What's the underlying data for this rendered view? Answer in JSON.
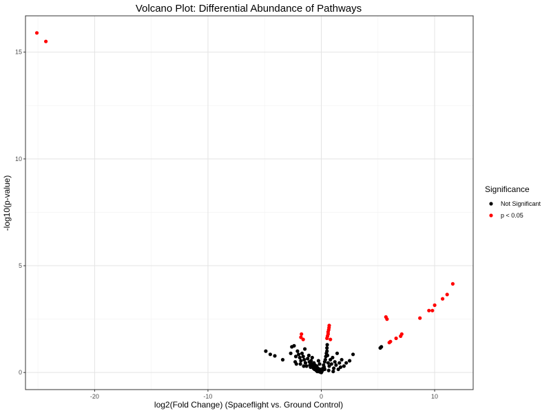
{
  "chart_data": {
    "type": "scatter",
    "title": "Volcano Plot: Differential Abundance of Pathways",
    "xlabel": "log2(Fold Change) (Spaceflight vs. Ground Control)",
    "ylabel": "-log10(p-value)",
    "xlim": [
      -26.1,
      13.4
    ],
    "ylim": [
      -0.8,
      16.7
    ],
    "xticks": [
      -20,
      -10,
      0,
      10
    ],
    "yticks": [
      0,
      5,
      10,
      15
    ],
    "xtick_labels": [
      "-20",
      "-10",
      "0",
      "10"
    ],
    "ytick_labels": [
      "0",
      "5",
      "10",
      "15"
    ],
    "grid": true,
    "legend": {
      "title": "Significance",
      "position": "right",
      "entries": [
        {
          "label": "Not Significant",
          "color": "#000000"
        },
        {
          "label": "p < 0.05",
          "color": "#ff0000"
        }
      ]
    },
    "series": [
      {
        "name": "Not Significant",
        "color": "#000000",
        "points": [
          [
            -4.9,
            1.0
          ],
          [
            -4.5,
            0.85
          ],
          [
            -4.1,
            0.78
          ],
          [
            -3.4,
            0.6
          ],
          [
            -2.7,
            0.9
          ],
          [
            -2.6,
            1.2
          ],
          [
            -2.4,
            1.25
          ],
          [
            -2.3,
            0.5
          ],
          [
            -2.2,
            0.4
          ],
          [
            -2.1,
            1.0
          ],
          [
            -2.0,
            0.85
          ],
          [
            -1.9,
            0.7
          ],
          [
            -1.8,
            0.55
          ],
          [
            -1.7,
            0.9
          ],
          [
            -1.6,
            0.75
          ],
          [
            -1.5,
            0.6
          ],
          [
            -1.45,
            1.1
          ],
          [
            -1.4,
            0.45
          ],
          [
            -1.3,
            0.3
          ],
          [
            -1.2,
            0.65
          ],
          [
            -1.1,
            0.8
          ],
          [
            -1.05,
            0.5
          ],
          [
            -1.0,
            0.35
          ],
          [
            -0.95,
            0.25
          ],
          [
            -0.9,
            0.55
          ],
          [
            -0.85,
            0.4
          ],
          [
            -0.8,
            0.7
          ],
          [
            -0.75,
            0.3
          ],
          [
            -0.7,
            0.2
          ],
          [
            -0.65,
            0.45
          ],
          [
            -0.6,
            0.15
          ],
          [
            -0.55,
            0.35
          ],
          [
            -0.5,
            0.25
          ],
          [
            -0.45,
            0.1
          ],
          [
            -0.4,
            0.3
          ],
          [
            -0.35,
            0.05
          ],
          [
            -0.3,
            0.2
          ],
          [
            -0.25,
            0.12
          ],
          [
            -0.2,
            0.08
          ],
          [
            -0.15,
            0.03
          ],
          [
            -0.1,
            0.15
          ],
          [
            -0.05,
            0.02
          ],
          [
            0.0,
            0.0
          ],
          [
            0.05,
            0.05
          ],
          [
            0.1,
            0.1
          ],
          [
            0.15,
            0.2
          ],
          [
            0.2,
            0.35
          ],
          [
            0.25,
            0.25
          ],
          [
            0.3,
            0.5
          ],
          [
            0.35,
            0.6
          ],
          [
            0.4,
            0.75
          ],
          [
            0.45,
            0.9
          ],
          [
            0.5,
            1.0
          ],
          [
            0.5,
            1.15
          ],
          [
            0.52,
            1.3
          ],
          [
            0.55,
            0.8
          ],
          [
            0.6,
            0.45
          ],
          [
            0.7,
            0.3
          ],
          [
            0.8,
            0.6
          ],
          [
            0.9,
            0.4
          ],
          [
            1.0,
            0.7
          ],
          [
            1.1,
            0.2
          ],
          [
            1.2,
            0.5
          ],
          [
            1.3,
            0.35
          ],
          [
            1.4,
            0.9
          ],
          [
            1.5,
            0.15
          ],
          [
            1.6,
            0.45
          ],
          [
            1.7,
            0.25
          ],
          [
            1.8,
            0.6
          ],
          [
            2.0,
            0.3
          ],
          [
            2.2,
            0.45
          ],
          [
            2.5,
            0.55
          ],
          [
            2.8,
            0.85
          ],
          [
            5.2,
            1.15
          ],
          [
            5.3,
            1.2
          ],
          [
            -1.85,
            0.4
          ],
          [
            -2.25,
            0.75
          ],
          [
            -1.55,
            0.3
          ],
          [
            -0.25,
            0.55
          ],
          [
            0.65,
            0.1
          ],
          [
            1.05,
            0.05
          ],
          [
            -0.15,
            0.4
          ],
          [
            0.3,
            0.15
          ]
        ]
      },
      {
        "name": "p < 0.05",
        "color": "#ff0000",
        "points": [
          [
            -25.1,
            15.9
          ],
          [
            -24.3,
            15.5
          ],
          [
            -1.75,
            1.8
          ],
          [
            -1.8,
            1.65
          ],
          [
            -1.6,
            1.55
          ],
          [
            0.5,
            1.6
          ],
          [
            0.55,
            1.7
          ],
          [
            0.6,
            1.8
          ],
          [
            0.6,
            1.9
          ],
          [
            0.65,
            2.0
          ],
          [
            0.68,
            2.1
          ],
          [
            0.7,
            2.2
          ],
          [
            0.8,
            1.55
          ],
          [
            5.7,
            2.6
          ],
          [
            5.8,
            2.5
          ],
          [
            6.0,
            1.4
          ],
          [
            6.1,
            1.45
          ],
          [
            6.6,
            1.6
          ],
          [
            7.0,
            1.7
          ],
          [
            7.1,
            1.8
          ],
          [
            8.7,
            2.55
          ],
          [
            9.5,
            2.9
          ],
          [
            9.8,
            2.9
          ],
          [
            10.0,
            3.15
          ],
          [
            10.7,
            3.45
          ],
          [
            11.1,
            3.65
          ],
          [
            11.6,
            4.15
          ]
        ]
      }
    ]
  }
}
